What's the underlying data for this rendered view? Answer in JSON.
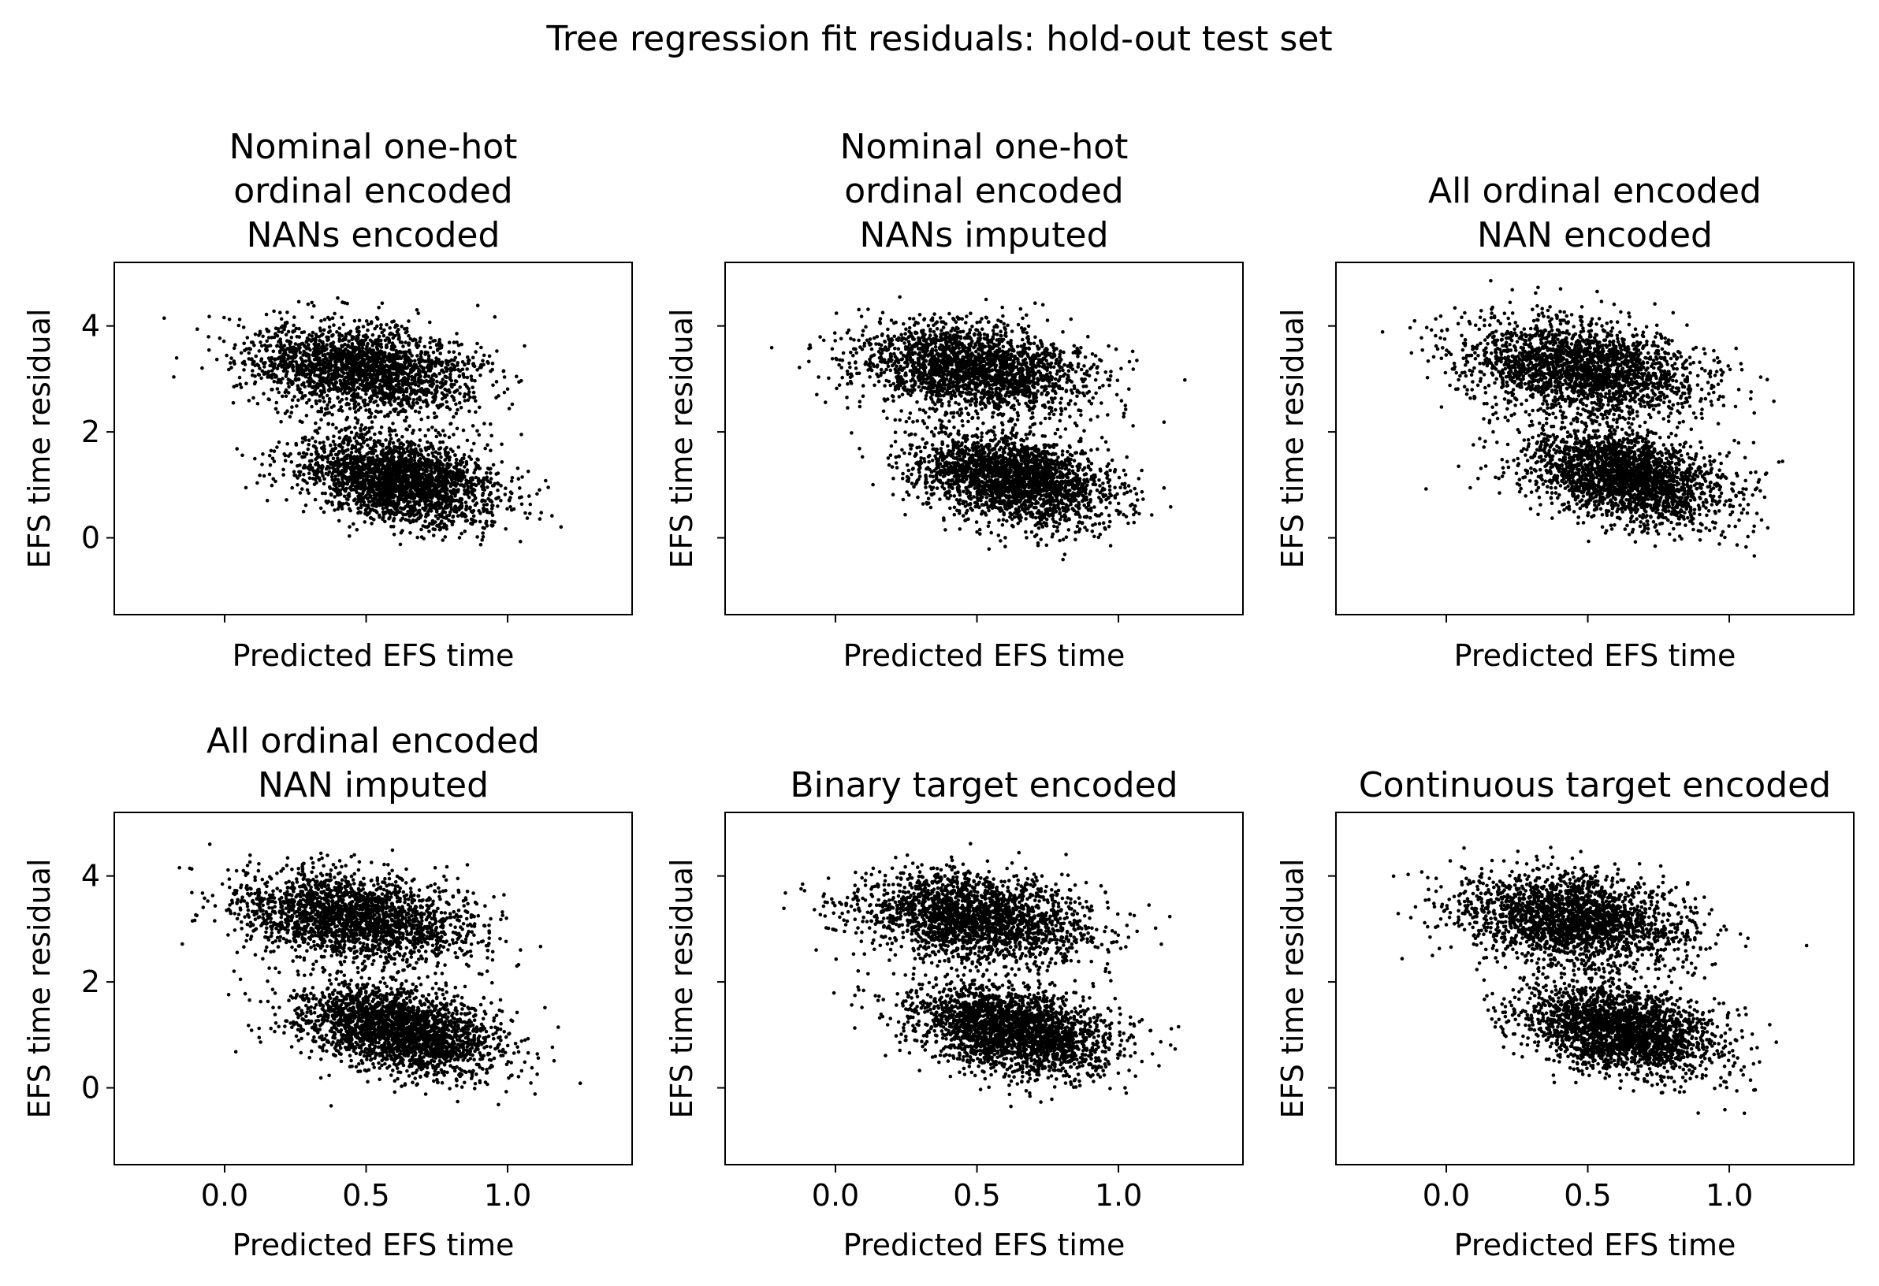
{
  "figure": {
    "suptitle": "Tree regression fit residuals: hold-out test set"
  },
  "chart_data": [
    {
      "type": "scatter",
      "title_lines": [
        "Nominal one-hot",
        "ordinal encoded",
        "NANs encoded"
      ],
      "xlabel": "Predicted EFS time",
      "ylabel": "EFS time residual",
      "xlim": [
        -0.39,
        1.44
      ],
      "ylim": [
        -1.45,
        5.2
      ],
      "xticks": [
        0.0,
        0.5,
        1.0
      ],
      "yticks": [
        0,
        2,
        4
      ],
      "show_xticklabels": false,
      "show_yticklabels": true,
      "grid": false,
      "series": [
        {
          "values_summary": "two clusters",
          "clusters": [
            {
              "center_x": 0.48,
              "center_y": 3.2,
              "spread_x": 0.2,
              "spread_y": 0.42,
              "corr": -0.25,
              "count": 2200
            },
            {
              "center_x": 0.62,
              "center_y": 1.1,
              "spread_x": 0.17,
              "spread_y": 0.42,
              "corr": -0.35,
              "count": 2400
            }
          ]
        }
      ],
      "seed": 11
    },
    {
      "type": "scatter",
      "title_lines": [
        "Nominal one-hot",
        "ordinal encoded",
        "NANs imputed"
      ],
      "xlabel": "Predicted EFS time",
      "ylabel": "EFS time residual",
      "xlim": [
        -0.39,
        1.44
      ],
      "ylim": [
        -1.45,
        5.2
      ],
      "xticks": [
        0.0,
        0.5,
        1.0
      ],
      "yticks": [
        0,
        2,
        4
      ],
      "show_xticklabels": false,
      "show_yticklabels": false,
      "grid": false,
      "series": [
        {
          "values_summary": "two clusters",
          "clusters": [
            {
              "center_x": 0.48,
              "center_y": 3.2,
              "spread_x": 0.2,
              "spread_y": 0.42,
              "corr": -0.25,
              "count": 2200
            },
            {
              "center_x": 0.63,
              "center_y": 1.1,
              "spread_x": 0.17,
              "spread_y": 0.42,
              "corr": -0.35,
              "count": 2400
            }
          ]
        }
      ],
      "seed": 23
    },
    {
      "type": "scatter",
      "title_lines": [
        "All ordinal encoded",
        "NAN encoded"
      ],
      "xlabel": "Predicted EFS time",
      "ylabel": "EFS time residual",
      "xlim": [
        -0.39,
        1.44
      ],
      "ylim": [
        -1.45,
        5.2
      ],
      "xticks": [
        0.0,
        0.5,
        1.0
      ],
      "yticks": [
        0,
        2,
        4
      ],
      "show_xticklabels": false,
      "show_yticklabels": false,
      "grid": false,
      "series": [
        {
          "values_summary": "two clusters",
          "clusters": [
            {
              "center_x": 0.48,
              "center_y": 3.2,
              "spread_x": 0.21,
              "spread_y": 0.45,
              "corr": -0.25,
              "count": 2200
            },
            {
              "center_x": 0.64,
              "center_y": 1.15,
              "spread_x": 0.18,
              "spread_y": 0.45,
              "corr": -0.35,
              "count": 2400
            }
          ]
        }
      ],
      "seed": 37
    },
    {
      "type": "scatter",
      "title_lines": [
        "All ordinal encoded",
        "NAN imputed"
      ],
      "xlabel": "Predicted EFS time",
      "ylabel": "EFS time residual",
      "xlim": [
        -0.39,
        1.44
      ],
      "ylim": [
        -1.45,
        5.2
      ],
      "xticks": [
        0.0,
        0.5,
        1.0
      ],
      "yticks": [
        0,
        2,
        4
      ],
      "xticklabels": [
        "0.0",
        "0.5",
        "1.0"
      ],
      "show_xticklabels": true,
      "show_yticklabels": true,
      "grid": false,
      "series": [
        {
          "values_summary": "two clusters",
          "clusters": [
            {
              "center_x": 0.46,
              "center_y": 3.2,
              "spread_x": 0.2,
              "spread_y": 0.42,
              "corr": -0.25,
              "count": 2200
            },
            {
              "center_x": 0.62,
              "center_y": 1.1,
              "spread_x": 0.17,
              "spread_y": 0.42,
              "corr": -0.35,
              "count": 2400
            }
          ]
        }
      ],
      "seed": 41
    },
    {
      "type": "scatter",
      "title_lines": [
        "Binary target encoded"
      ],
      "xlabel": "Predicted EFS time",
      "ylabel": "EFS time residual",
      "xlim": [
        -0.39,
        1.44
      ],
      "ylim": [
        -1.45,
        5.2
      ],
      "xticks": [
        0.0,
        0.5,
        1.0
      ],
      "yticks": [
        0,
        2,
        4
      ],
      "xticklabels": [
        "0.0",
        "0.5",
        "1.0"
      ],
      "show_xticklabels": true,
      "show_yticklabels": false,
      "grid": false,
      "series": [
        {
          "values_summary": "two clusters",
          "clusters": [
            {
              "center_x": 0.5,
              "center_y": 3.2,
              "spread_x": 0.2,
              "spread_y": 0.42,
              "corr": -0.25,
              "count": 2200
            },
            {
              "center_x": 0.63,
              "center_y": 1.1,
              "spread_x": 0.17,
              "spread_y": 0.42,
              "corr": -0.35,
              "count": 2400
            }
          ]
        }
      ],
      "seed": 53
    },
    {
      "type": "scatter",
      "title_lines": [
        "Continuous target encoded"
      ],
      "xlabel": "Predicted EFS time",
      "ylabel": "EFS time residual",
      "xlim": [
        -0.39,
        1.44
      ],
      "ylim": [
        -1.45,
        5.2
      ],
      "xticks": [
        0.0,
        0.5,
        1.0
      ],
      "yticks": [
        0,
        2,
        4
      ],
      "xticklabels": [
        "0.0",
        "0.5",
        "1.0"
      ],
      "show_xticklabels": true,
      "show_yticklabels": false,
      "grid": false,
      "series": [
        {
          "values_summary": "two clusters",
          "clusters": [
            {
              "center_x": 0.45,
              "center_y": 3.2,
              "spread_x": 0.2,
              "spread_y": 0.42,
              "corr": -0.25,
              "count": 2200
            },
            {
              "center_x": 0.62,
              "center_y": 1.1,
              "spread_x": 0.17,
              "spread_y": 0.42,
              "corr": -0.35,
              "count": 2400
            }
          ]
        }
      ],
      "seed": 67
    }
  ]
}
